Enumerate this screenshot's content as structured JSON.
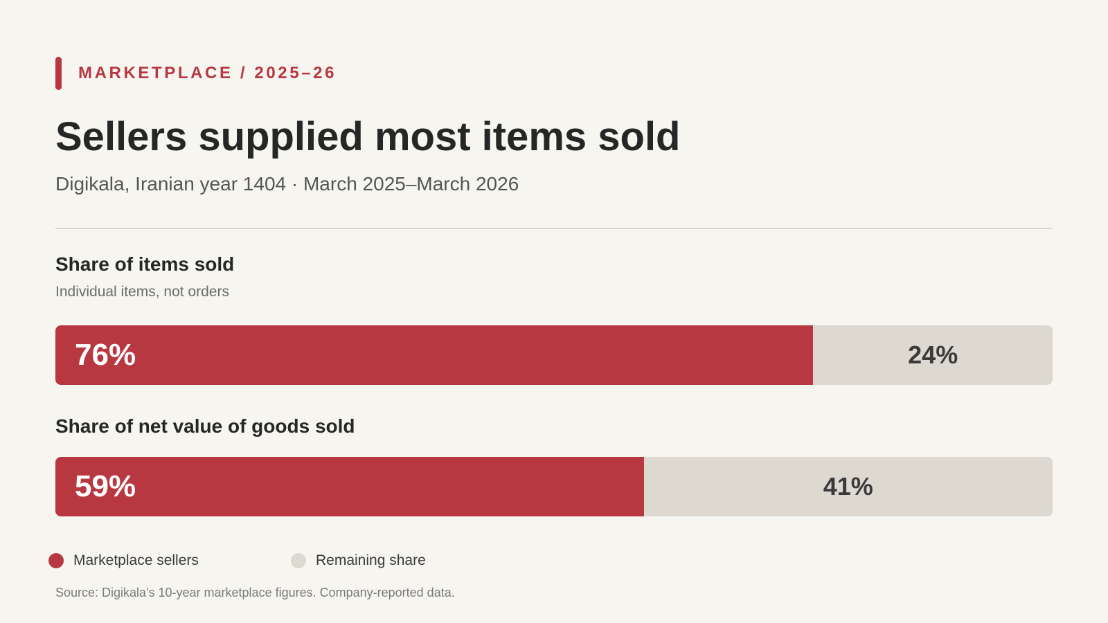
{
  "eyebrow": "MARKETPLACE / 2025–26",
  "title": "Sellers supplied most items sold",
  "subtitle": "Digikala, Iranian year 1404 · March 2025–March 2026",
  "source": "Source: Digikala's 10-year marketplace figures. Company-reported data.",
  "colors": {
    "accent": "#b73841",
    "remaining": "#ddd8d0",
    "background": "#f6f5f0"
  },
  "chart_data": {
    "type": "bar",
    "orientation": "horizontal-stacked",
    "unit": "%",
    "categories": [
      "Share of items sold",
      "Share of net value of goods sold"
    ],
    "notes": [
      "Individual items, not orders",
      ""
    ],
    "series": [
      {
        "name": "Marketplace sellers",
        "values": [
          76,
          59
        ],
        "labels": [
          "76%",
          "59%"
        ]
      },
      {
        "name": "Remaining share",
        "values": [
          24,
          41
        ],
        "labels": [
          "24%",
          "41%"
        ]
      }
    ],
    "xlim": [
      0,
      100
    ],
    "grid": false,
    "legend_position": "bottom-left"
  }
}
